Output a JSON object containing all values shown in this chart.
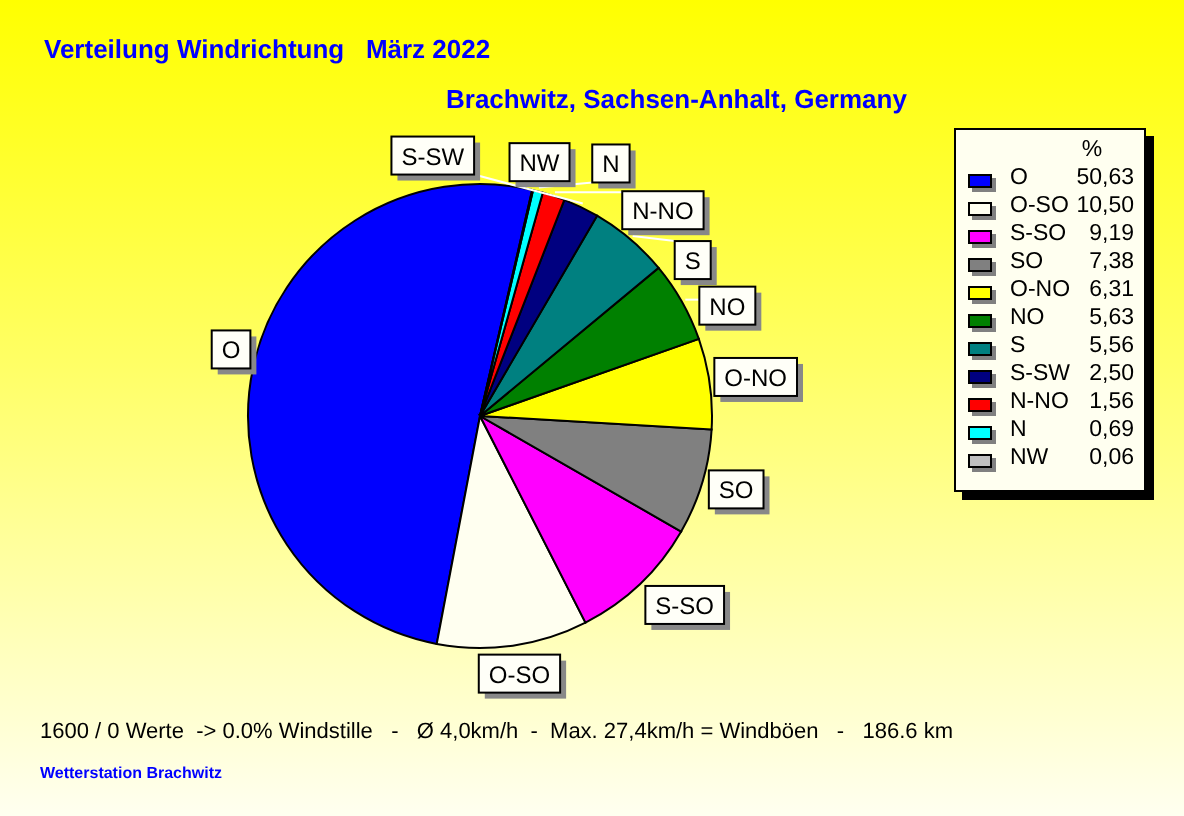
{
  "chart_data": {
    "type": "pie",
    "title": "Verteilung Windrichtung   März 2022",
    "subtitle": "Brachwitz, Sachsen-Anhalt, Germany",
    "categories": [
      "O",
      "O-SO",
      "S-SO",
      "SO",
      "O-NO",
      "NO",
      "S",
      "S-SW",
      "N-NO",
      "N",
      "NW"
    ],
    "values": [
      50.63,
      10.5,
      9.19,
      7.38,
      6.31,
      5.63,
      5.56,
      2.5,
      1.56,
      0.69,
      0.06
    ],
    "value_labels": [
      "50,63",
      "10,50",
      "9,19",
      "7,38",
      "6,31",
      "5,63",
      "5,56",
      "2,50",
      "1,56",
      "0,69",
      "0,06"
    ],
    "colors": [
      "#0000ff",
      "#fffff0",
      "#ff00ff",
      "#808080",
      "#ffff00",
      "#008000",
      "#008080",
      "#000080",
      "#ff0000",
      "#00ffff",
      "#c0c0c0"
    ],
    "legend": "right",
    "legend_title": "%",
    "annotations": [
      "1600 / 0 Werte  -> 0.0% Windstille   -   Ø 4,0km/h  -  Max. 27,4km/h = Windböen   -   186.6 km",
      "Wetterstation Brachwitz"
    ]
  }
}
